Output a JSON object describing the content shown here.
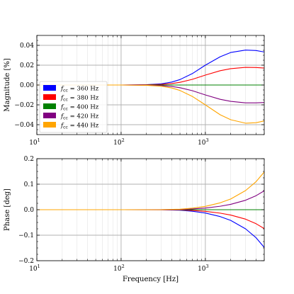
{
  "chart_data": [
    {
      "type": "line",
      "ylabel": "Magnitude [%]",
      "xlabel": "",
      "xscale": "log",
      "xlim": [
        10,
        5000
      ],
      "ylim": [
        -0.05,
        0.05
      ],
      "yticks": [
        "0.04",
        "0.02",
        "0.00",
        "−0.02",
        "−0.04"
      ],
      "ytick_values": [
        0.04,
        0.02,
        0.0,
        -0.02,
        -0.04
      ],
      "xticks": [
        {
          "value": 10,
          "base": "10",
          "exp": "1"
        },
        {
          "value": 100,
          "base": "10",
          "exp": "2"
        },
        {
          "value": 1000,
          "base": "10",
          "exp": "3"
        }
      ],
      "grid": true,
      "legend_position": "lower-left",
      "series": [
        {
          "name": "f_cc = 360 Hz",
          "legend_main": "f",
          "legend_sub": "cc",
          "legend_rest": " = 360 Hz",
          "color": "#0000ff",
          "points": [
            [
              10,
              0
            ],
            [
              100,
              0
            ],
            [
              200,
              0.0003
            ],
            [
              300,
              0.0012
            ],
            [
              400,
              0.003
            ],
            [
              500,
              0.0055
            ],
            [
              700,
              0.0115
            ],
            [
              1000,
              0.02
            ],
            [
              1500,
              0.0285
            ],
            [
              2000,
              0.0328
            ],
            [
              3000,
              0.0352
            ],
            [
              4000,
              0.0348
            ],
            [
              5000,
              0.0333
            ]
          ]
        },
        {
          "name": "f_cc = 380 Hz",
          "legend_main": "f",
          "legend_sub": "cc",
          "legend_rest": " = 380 Hz",
          "color": "#ff0000",
          "points": [
            [
              10,
              0
            ],
            [
              100,
              0
            ],
            [
              200,
              0.0002
            ],
            [
              300,
              0.0006
            ],
            [
              400,
              0.0015
            ],
            [
              500,
              0.0027
            ],
            [
              700,
              0.0057
            ],
            [
              1000,
              0.01
            ],
            [
              1500,
              0.0144
            ],
            [
              2000,
              0.0165
            ],
            [
              3000,
              0.0178
            ],
            [
              4000,
              0.0176
            ],
            [
              5000,
              0.0171
            ]
          ]
        },
        {
          "name": "f_cc = 400 Hz",
          "legend_main": "f",
          "legend_sub": "cc",
          "legend_rest": " = 400 Hz",
          "color": "#008000",
          "points": [
            [
              10,
              0
            ],
            [
              5000,
              0
            ]
          ]
        },
        {
          "name": "f_cc = 420 Hz",
          "legend_main": "f",
          "legend_sub": "cc",
          "legend_rest": " = 420 Hz",
          "color": "#800080",
          "points": [
            [
              10,
              0
            ],
            [
              100,
              0
            ],
            [
              200,
              -0.0002
            ],
            [
              300,
              -0.0006
            ],
            [
              400,
              -0.0015
            ],
            [
              500,
              -0.0027
            ],
            [
              700,
              -0.0057
            ],
            [
              1000,
              -0.01
            ],
            [
              1500,
              -0.0144
            ],
            [
              2000,
              -0.0165
            ],
            [
              3000,
              -0.018
            ],
            [
              4000,
              -0.018
            ],
            [
              5000,
              -0.0176
            ]
          ]
        },
        {
          "name": "f_cc = 440 Hz",
          "legend_main": "f",
          "legend_sub": "cc",
          "legend_rest": " = 440 Hz",
          "color": "#ffa500",
          "points": [
            [
              10,
              0
            ],
            [
              100,
              0
            ],
            [
              200,
              -0.0003
            ],
            [
              300,
              -0.0012
            ],
            [
              400,
              -0.003
            ],
            [
              500,
              -0.0055
            ],
            [
              700,
              -0.0115
            ],
            [
              1000,
              -0.02
            ],
            [
              1500,
              -0.03
            ],
            [
              2000,
              -0.035
            ],
            [
              3000,
              -0.0385
            ],
            [
              4000,
              -0.038
            ],
            [
              5000,
              -0.0362
            ]
          ]
        }
      ]
    },
    {
      "type": "line",
      "ylabel": "Phase [deg]",
      "xlabel": "Frequency [Hz]",
      "xscale": "log",
      "xlim": [
        10,
        5000
      ],
      "ylim": [
        -0.2,
        0.2
      ],
      "yticks": [
        "0.2",
        "0.1",
        "0.0",
        "−0.1",
        "−0.2"
      ],
      "ytick_values": [
        0.2,
        0.1,
        0.0,
        -0.1,
        -0.2
      ],
      "xticks": [
        {
          "value": 10,
          "base": "10",
          "exp": "1"
        },
        {
          "value": 100,
          "base": "10",
          "exp": "2"
        },
        {
          "value": 1000,
          "base": "10",
          "exp": "3"
        }
      ],
      "grid": true,
      "series": [
        {
          "name": "f_cc = 360 Hz",
          "color": "#0000ff",
          "points": [
            [
              10,
              0
            ],
            [
              100,
              0
            ],
            [
              300,
              -0.0002
            ],
            [
              500,
              -0.002
            ],
            [
              700,
              -0.006
            ],
            [
              1000,
              -0.013
            ],
            [
              1500,
              -0.027
            ],
            [
              2000,
              -0.042
            ],
            [
              3000,
              -0.075
            ],
            [
              4000,
              -0.11
            ],
            [
              5000,
              -0.148
            ]
          ]
        },
        {
          "name": "f_cc = 380 Hz",
          "color": "#ff0000",
          "points": [
            [
              10,
              0
            ],
            [
              100,
              0
            ],
            [
              300,
              -0.0001
            ],
            [
              500,
              -0.001
            ],
            [
              700,
              -0.003
            ],
            [
              1000,
              -0.0065
            ],
            [
              1500,
              -0.0135
            ],
            [
              2000,
              -0.021
            ],
            [
              3000,
              -0.037
            ],
            [
              4000,
              -0.055
            ],
            [
              5000,
              -0.074
            ]
          ]
        },
        {
          "name": "f_cc = 400 Hz",
          "color": "#008000",
          "points": [
            [
              10,
              0
            ],
            [
              5000,
              0
            ]
          ]
        },
        {
          "name": "f_cc = 420 Hz",
          "color": "#800080",
          "points": [
            [
              10,
              0
            ],
            [
              100,
              0
            ],
            [
              300,
              0.0001
            ],
            [
              500,
              0.001
            ],
            [
              700,
              0.003
            ],
            [
              1000,
              0.0065
            ],
            [
              1500,
              0.0135
            ],
            [
              2000,
              0.021
            ],
            [
              3000,
              0.037
            ],
            [
              4000,
              0.055
            ],
            [
              5000,
              0.074
            ]
          ]
        },
        {
          "name": "f_cc = 440 Hz",
          "color": "#ffa500",
          "points": [
            [
              10,
              0
            ],
            [
              100,
              0
            ],
            [
              300,
              0.0002
            ],
            [
              500,
              0.002
            ],
            [
              700,
              0.006
            ],
            [
              1000,
              0.013
            ],
            [
              1500,
              0.027
            ],
            [
              2000,
              0.042
            ],
            [
              3000,
              0.075
            ],
            [
              4000,
              0.11
            ],
            [
              5000,
              0.148
            ]
          ]
        }
      ]
    }
  ]
}
